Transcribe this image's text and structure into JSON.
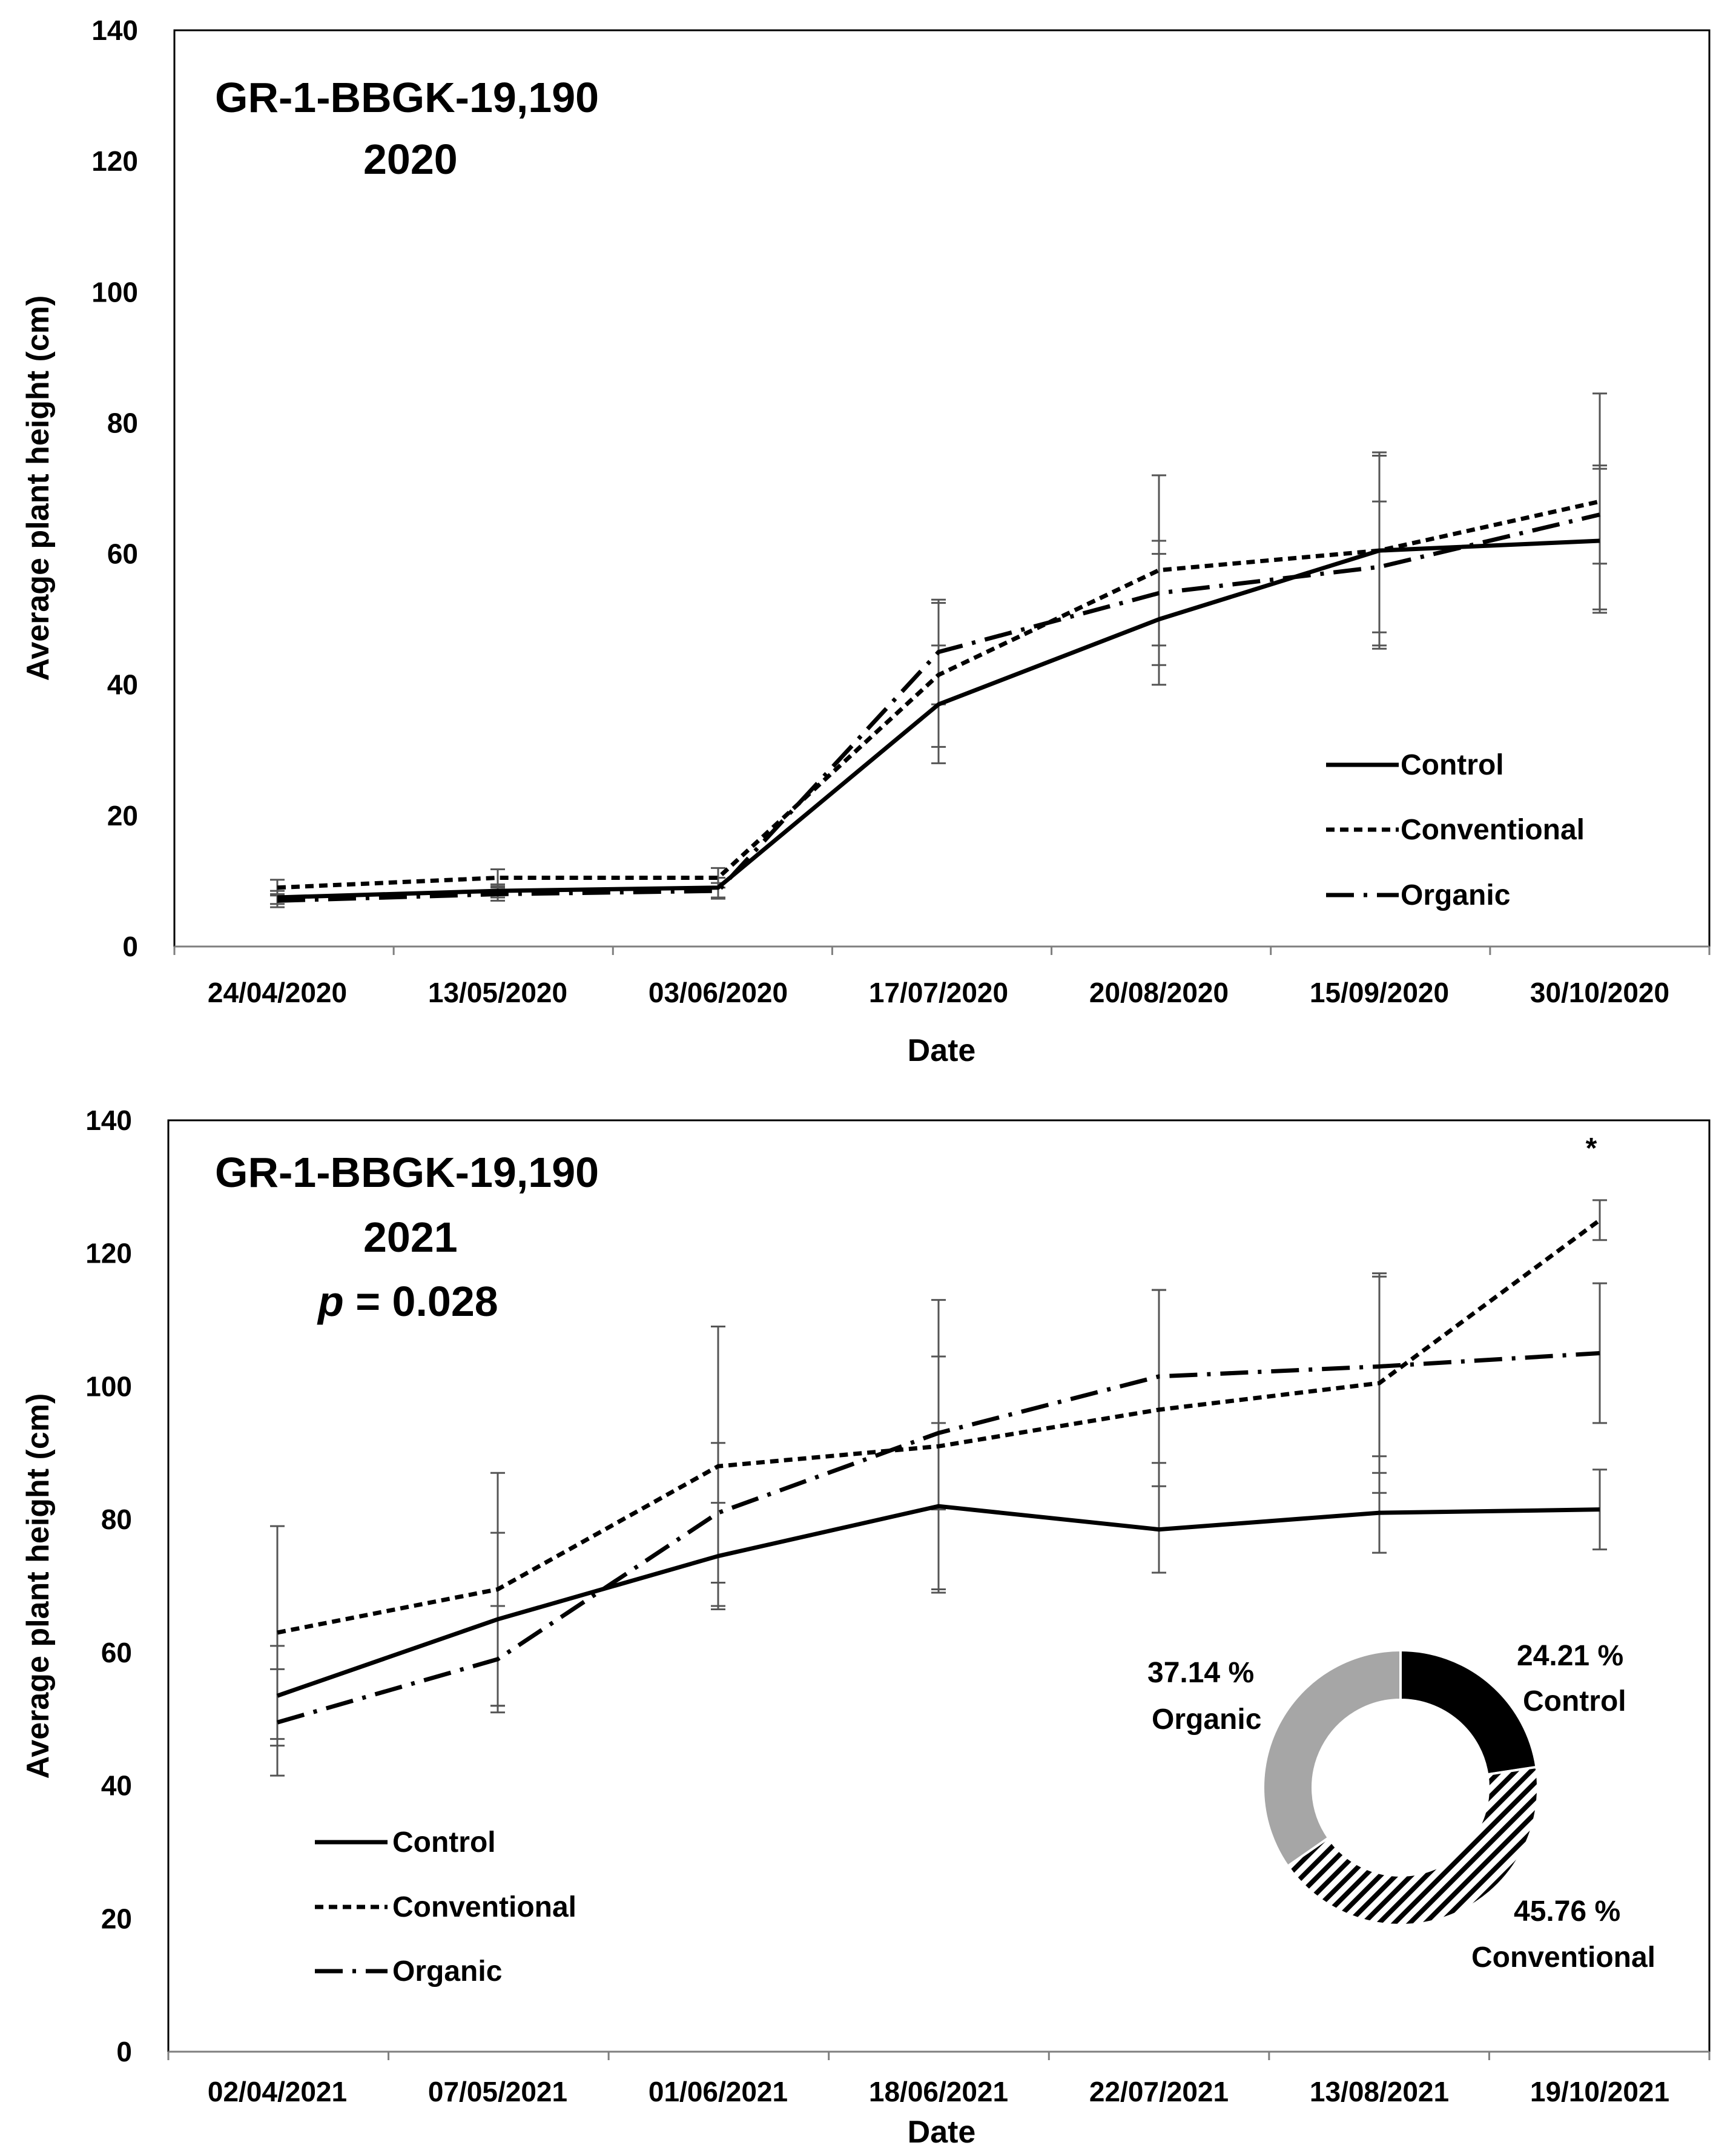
{
  "chart_data": [
    {
      "type": "line",
      "title": "GR-1-BBGK-19,190",
      "subtitle": "2020",
      "xlabel": "Date",
      "ylabel": "Average plant height (cm)",
      "ylim": [
        0,
        140
      ],
      "yticks": [
        "0",
        "20",
        "40",
        "60",
        "80",
        "100",
        "120",
        "140"
      ],
      "categories": [
        "24/04/2020",
        "13/05/2020",
        "03/06/2020",
        "17/07/2020",
        "20/08/2020",
        "15/09/2020",
        "30/10/2020"
      ],
      "legend_position": "bottom-right",
      "series": [
        {
          "name": "Control",
          "style": "solid",
          "values": [
            7.5,
            8.5,
            9.0,
            37.0,
            50.0,
            60.5,
            62.0
          ],
          "err": [
            1.0,
            1.0,
            1.5,
            9.0,
            10.0,
            14.5,
            11.0
          ]
        },
        {
          "name": "Conventional",
          "style": "dotted",
          "values": [
            9.0,
            10.5,
            10.5,
            41.5,
            57.5,
            60.5,
            68.0
          ],
          "err": [
            1.2,
            1.3,
            1.5,
            11.0,
            14.5,
            15.0,
            16.5
          ]
        },
        {
          "name": "Organic",
          "style": "dashed",
          "values": [
            7.0,
            8.0,
            8.5,
            45.0,
            54.0,
            58.0,
            66.0
          ],
          "err": [
            1.0,
            1.0,
            1.2,
            8.0,
            8.0,
            10.0,
            7.5
          ]
        }
      ]
    },
    {
      "type": "line",
      "title": "GR-1-BBGK-19,190",
      "subtitle": "2021",
      "pvalue_prefix": "p",
      "pvalue_text": " = 0.028",
      "significance_marker": "*",
      "xlabel": "Date",
      "ylabel": "Average plant height (cm)",
      "ylim": [
        0,
        140
      ],
      "yticks": [
        "0",
        "20",
        "40",
        "60",
        "80",
        "100",
        "120",
        "140"
      ],
      "categories": [
        "02/04/2021",
        "07/05/2021",
        "01/06/2021",
        "18/06/2021",
        "22/07/2021",
        "13/08/2021",
        "19/10/2021"
      ],
      "legend_position": "bottom-left",
      "series": [
        {
          "name": "Control",
          "style": "solid",
          "values": [
            53.5,
            65.0,
            74.5,
            82.0,
            78.5,
            81.0,
            81.5
          ],
          "err": [
            7.5,
            13.0,
            8.0,
            12.5,
            6.5,
            6.0,
            6.0
          ]
        },
        {
          "name": "Conventional",
          "style": "dotted",
          "values": [
            63.0,
            69.5,
            88.0,
            91.0,
            96.5,
            100.5,
            125.0
          ],
          "err": [
            16.0,
            17.5,
            21.0,
            22.0,
            18.0,
            16.5,
            3.0
          ]
        },
        {
          "name": "Organic",
          "style": "dashed",
          "values": [
            49.5,
            59.0,
            81.0,
            93.0,
            101.5,
            103.0,
            105.0
          ],
          "err": [
            8.0,
            8.0,
            10.5,
            11.5,
            13.0,
            13.5,
            10.5
          ]
        }
      ],
      "donut": [
        {
          "name": "Control",
          "label_pct": "24.21 %",
          "value": 24.21,
          "fill": "solid-black"
        },
        {
          "name": "Conventional",
          "label_pct": "45.76 %",
          "value": 45.76,
          "fill": "hatched"
        },
        {
          "name": "Organic",
          "label_pct": "37.14 %",
          "value": 37.14,
          "fill": "solid-gray"
        }
      ]
    }
  ],
  "colors": {
    "line": "#000000",
    "errorbar": "#555555",
    "donut_control": "#000000",
    "donut_organic": "#a6a6a6",
    "axis": "#7f7f7f"
  }
}
